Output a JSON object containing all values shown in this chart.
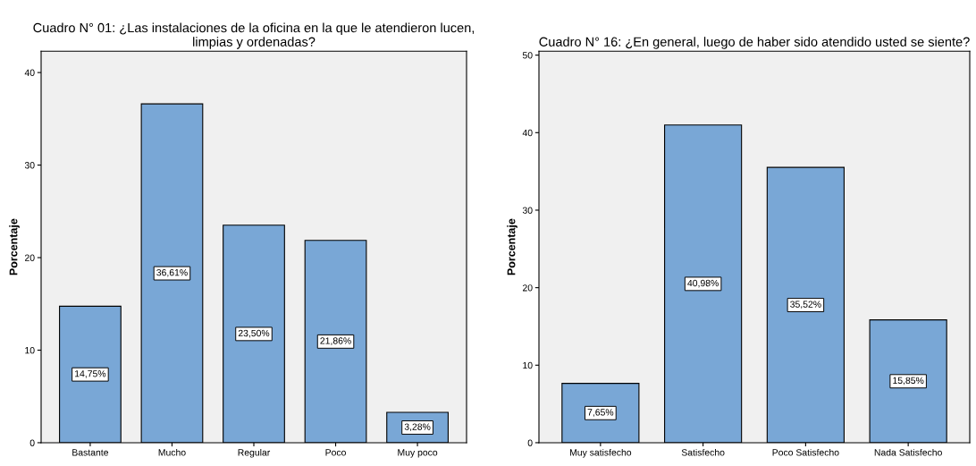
{
  "chart_data": [
    {
      "type": "bar",
      "title": "Cuadro N° 01: ¿Las instalaciones de la oficina en la que le atendieron lucen,\nlimpias y ordenadas?",
      "ylabel": "Porcentaje",
      "categories": [
        "Bastante",
        "Mucho",
        "Regular",
        "Poco",
        "Muy poco"
      ],
      "values": [
        14.75,
        36.61,
        23.5,
        21.86,
        3.28
      ],
      "value_labels": [
        "14,75%",
        "36,61%",
        "23,50%",
        "21,86%",
        "3,28%"
      ],
      "color": "#79a7d6",
      "ylim": [
        0,
        42.3
      ],
      "yticks": [
        0,
        10,
        20,
        30,
        40
      ],
      "grid": false
    },
    {
      "type": "bar",
      "title": "Cuadro N° 16: ¿En general, luego de haber sido atendido usted se siente?",
      "ylabel": "Porcentaje",
      "categories": [
        "Muy satisfecho",
        "Satisfecho",
        "Poco Satisfecho",
        "Nada Satisfecho"
      ],
      "values": [
        7.65,
        40.98,
        35.52,
        15.85
      ],
      "value_labels": [
        "7,65%",
        "40,98%",
        "35,52%",
        "15,85%"
      ],
      "color": "#79a7d6",
      "ylim": [
        0,
        50.5
      ],
      "yticks": [
        0,
        10,
        20,
        30,
        40,
        50
      ],
      "grid": false
    }
  ]
}
